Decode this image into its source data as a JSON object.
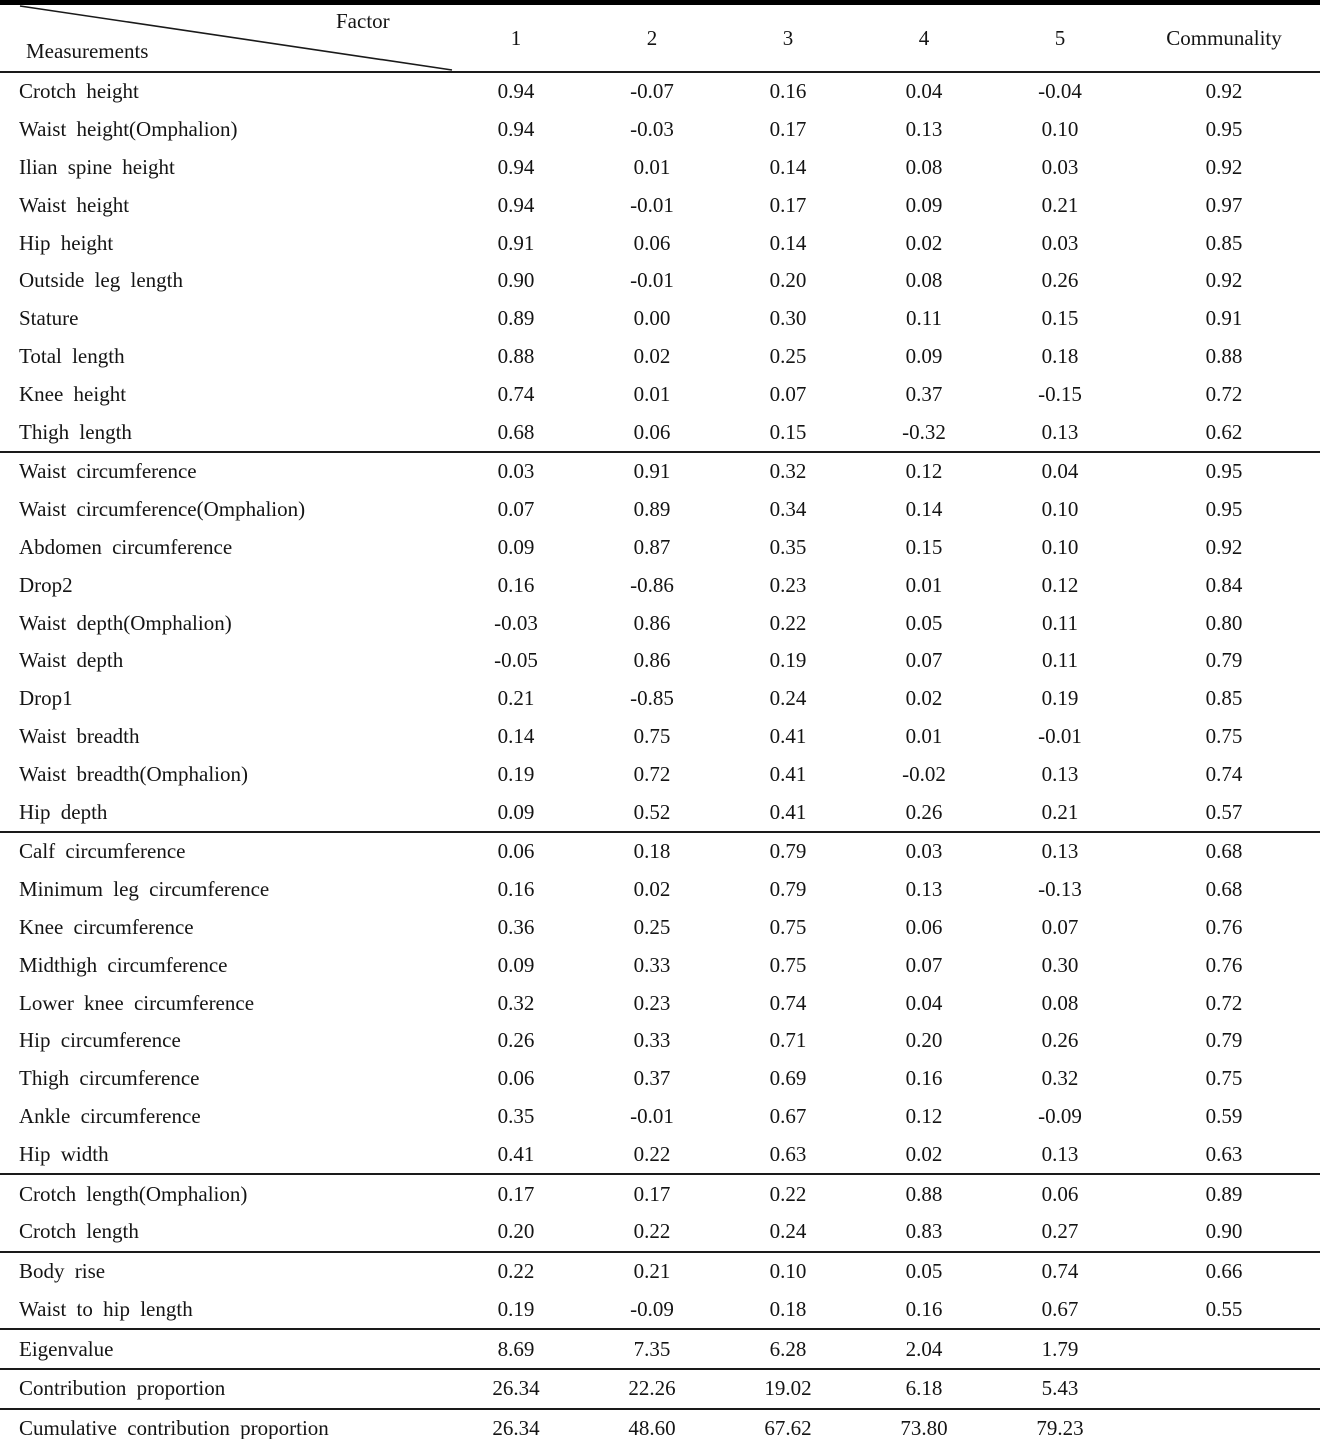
{
  "header": {
    "col_axis_label": "Factor",
    "row_axis_label": "Measurements",
    "factor_columns": [
      "1",
      "2",
      "3",
      "4",
      "5"
    ],
    "communality_label": "Communality"
  },
  "sections": [
    {
      "name": "factor-1-heights",
      "rows": [
        {
          "label": "Crotch height",
          "values": [
            "0.94",
            "-0.07",
            "0.16",
            "0.04",
            "-0.04"
          ],
          "communality": "0.92"
        },
        {
          "label": "Waist height(Omphalion)",
          "values": [
            "0.94",
            "-0.03",
            "0.17",
            "0.13",
            "0.10"
          ],
          "communality": "0.95"
        },
        {
          "label": "Ilian spine height",
          "values": [
            "0.94",
            "0.01",
            "0.14",
            "0.08",
            "0.03"
          ],
          "communality": "0.92"
        },
        {
          "label": "Waist height",
          "values": [
            "0.94",
            "-0.01",
            "0.17",
            "0.09",
            "0.21"
          ],
          "communality": "0.97"
        },
        {
          "label": "Hip height",
          "values": [
            "0.91",
            "0.06",
            "0.14",
            "0.02",
            "0.03"
          ],
          "communality": "0.85"
        },
        {
          "label": "Outside leg length",
          "values": [
            "0.90",
            "-0.01",
            "0.20",
            "0.08",
            "0.26"
          ],
          "communality": "0.92"
        },
        {
          "label": "Stature",
          "values": [
            "0.89",
            "0.00",
            "0.30",
            "0.11",
            "0.15"
          ],
          "communality": "0.91"
        },
        {
          "label": "Total length",
          "values": [
            "0.88",
            "0.02",
            "0.25",
            "0.09",
            "0.18"
          ],
          "communality": "0.88"
        },
        {
          "label": "Knee height",
          "values": [
            "0.74",
            "0.01",
            "0.07",
            "0.37",
            "-0.15"
          ],
          "communality": "0.72"
        },
        {
          "label": "Thigh length",
          "values": [
            "0.68",
            "0.06",
            "0.15",
            "-0.32",
            "0.13"
          ],
          "communality": "0.62"
        }
      ]
    },
    {
      "name": "factor-2-girths",
      "rows": [
        {
          "label": "Waist circumference",
          "values": [
            "0.03",
            "0.91",
            "0.32",
            "0.12",
            "0.04"
          ],
          "communality": "0.95"
        },
        {
          "label": "Waist circumference(Omphalion)",
          "values": [
            "0.07",
            "0.89",
            "0.34",
            "0.14",
            "0.10"
          ],
          "communality": "0.95"
        },
        {
          "label": "Abdomen circumference",
          "values": [
            "0.09",
            "0.87",
            "0.35",
            "0.15",
            "0.10"
          ],
          "communality": "0.92"
        },
        {
          "label": "Drop2",
          "values": [
            "0.16",
            "-0.86",
            "0.23",
            "0.01",
            "0.12"
          ],
          "communality": "0.84"
        },
        {
          "label": "Waist depth(Omphalion)",
          "values": [
            "-0.03",
            "0.86",
            "0.22",
            "0.05",
            "0.11"
          ],
          "communality": "0.80"
        },
        {
          "label": "Waist depth",
          "values": [
            "-0.05",
            "0.86",
            "0.19",
            "0.07",
            "0.11"
          ],
          "communality": "0.79"
        },
        {
          "label": "Drop1",
          "values": [
            "0.21",
            "-0.85",
            "0.24",
            "0.02",
            "0.19"
          ],
          "communality": "0.85"
        },
        {
          "label": "Waist breadth",
          "values": [
            "0.14",
            "0.75",
            "0.41",
            "0.01",
            "-0.01"
          ],
          "communality": "0.75"
        },
        {
          "label": "Waist breadth(Omphalion)",
          "values": [
            "0.19",
            "0.72",
            "0.41",
            "-0.02",
            "0.13"
          ],
          "communality": "0.74"
        },
        {
          "label": "Hip depth",
          "values": [
            "0.09",
            "0.52",
            "0.41",
            "0.26",
            "0.21"
          ],
          "communality": "0.57"
        }
      ]
    },
    {
      "name": "factor-3-limb-girths",
      "rows": [
        {
          "label": "Calf circumference",
          "values": [
            "0.06",
            "0.18",
            "0.79",
            "0.03",
            "0.13"
          ],
          "communality": "0.68"
        },
        {
          "label": "Minimum leg circumference",
          "values": [
            "0.16",
            "0.02",
            "0.79",
            "0.13",
            "-0.13"
          ],
          "communality": "0.68"
        },
        {
          "label": "Knee circumference",
          "values": [
            "0.36",
            "0.25",
            "0.75",
            "0.06",
            "0.07"
          ],
          "communality": "0.76"
        },
        {
          "label": "Midthigh circumference",
          "values": [
            "0.09",
            "0.33",
            "0.75",
            "0.07",
            "0.30"
          ],
          "communality": "0.76"
        },
        {
          "label": "Lower knee circumference",
          "values": [
            "0.32",
            "0.23",
            "0.74",
            "0.04",
            "0.08"
          ],
          "communality": "0.72"
        },
        {
          "label": "Hip circumference",
          "values": [
            "0.26",
            "0.33",
            "0.71",
            "0.20",
            "0.26"
          ],
          "communality": "0.79"
        },
        {
          "label": "Thigh circumference",
          "values": [
            "0.06",
            "0.37",
            "0.69",
            "0.16",
            "0.32"
          ],
          "communality": "0.75"
        },
        {
          "label": "Ankle circumference",
          "values": [
            "0.35",
            "-0.01",
            "0.67",
            "0.12",
            "-0.09"
          ],
          "communality": "0.59"
        },
        {
          "label": "Hip width",
          "values": [
            "0.41",
            "0.22",
            "0.63",
            "0.02",
            "0.13"
          ],
          "communality": "0.63"
        }
      ]
    },
    {
      "name": "factor-4-crotch",
      "rows": [
        {
          "label": "Crotch length(Omphalion)",
          "values": [
            "0.17",
            "0.17",
            "0.22",
            "0.88",
            "0.06"
          ],
          "communality": "0.89"
        },
        {
          "label": "Crotch length",
          "values": [
            "0.20",
            "0.22",
            "0.24",
            "0.83",
            "0.27"
          ],
          "communality": "0.90"
        }
      ]
    },
    {
      "name": "factor-5-rise",
      "rows": [
        {
          "label": "Body rise",
          "values": [
            "0.22",
            "0.21",
            "0.10",
            "0.05",
            "0.74"
          ],
          "communality": "0.66"
        },
        {
          "label": "Waist to hip length",
          "values": [
            "0.19",
            "-0.09",
            "0.18",
            "0.16",
            "0.67"
          ],
          "communality": "0.55"
        }
      ]
    }
  ],
  "summary_rows": [
    {
      "label": "Eigenvalue",
      "values": [
        "8.69",
        "7.35",
        "6.28",
        "2.04",
        "1.79"
      ],
      "communality": ""
    },
    {
      "label": "Contribution proportion",
      "values": [
        "26.34",
        "22.26",
        "19.02",
        "6.18",
        "5.43"
      ],
      "communality": ""
    },
    {
      "label": "Cumulative contribution proportion",
      "values": [
        "26.34",
        "48.60",
        "67.62",
        "73.80",
        "79.23"
      ],
      "communality": ""
    }
  ],
  "colors": {
    "text": "#141414",
    "rule": "#1a1a1a",
    "background": "#ffffff"
  }
}
